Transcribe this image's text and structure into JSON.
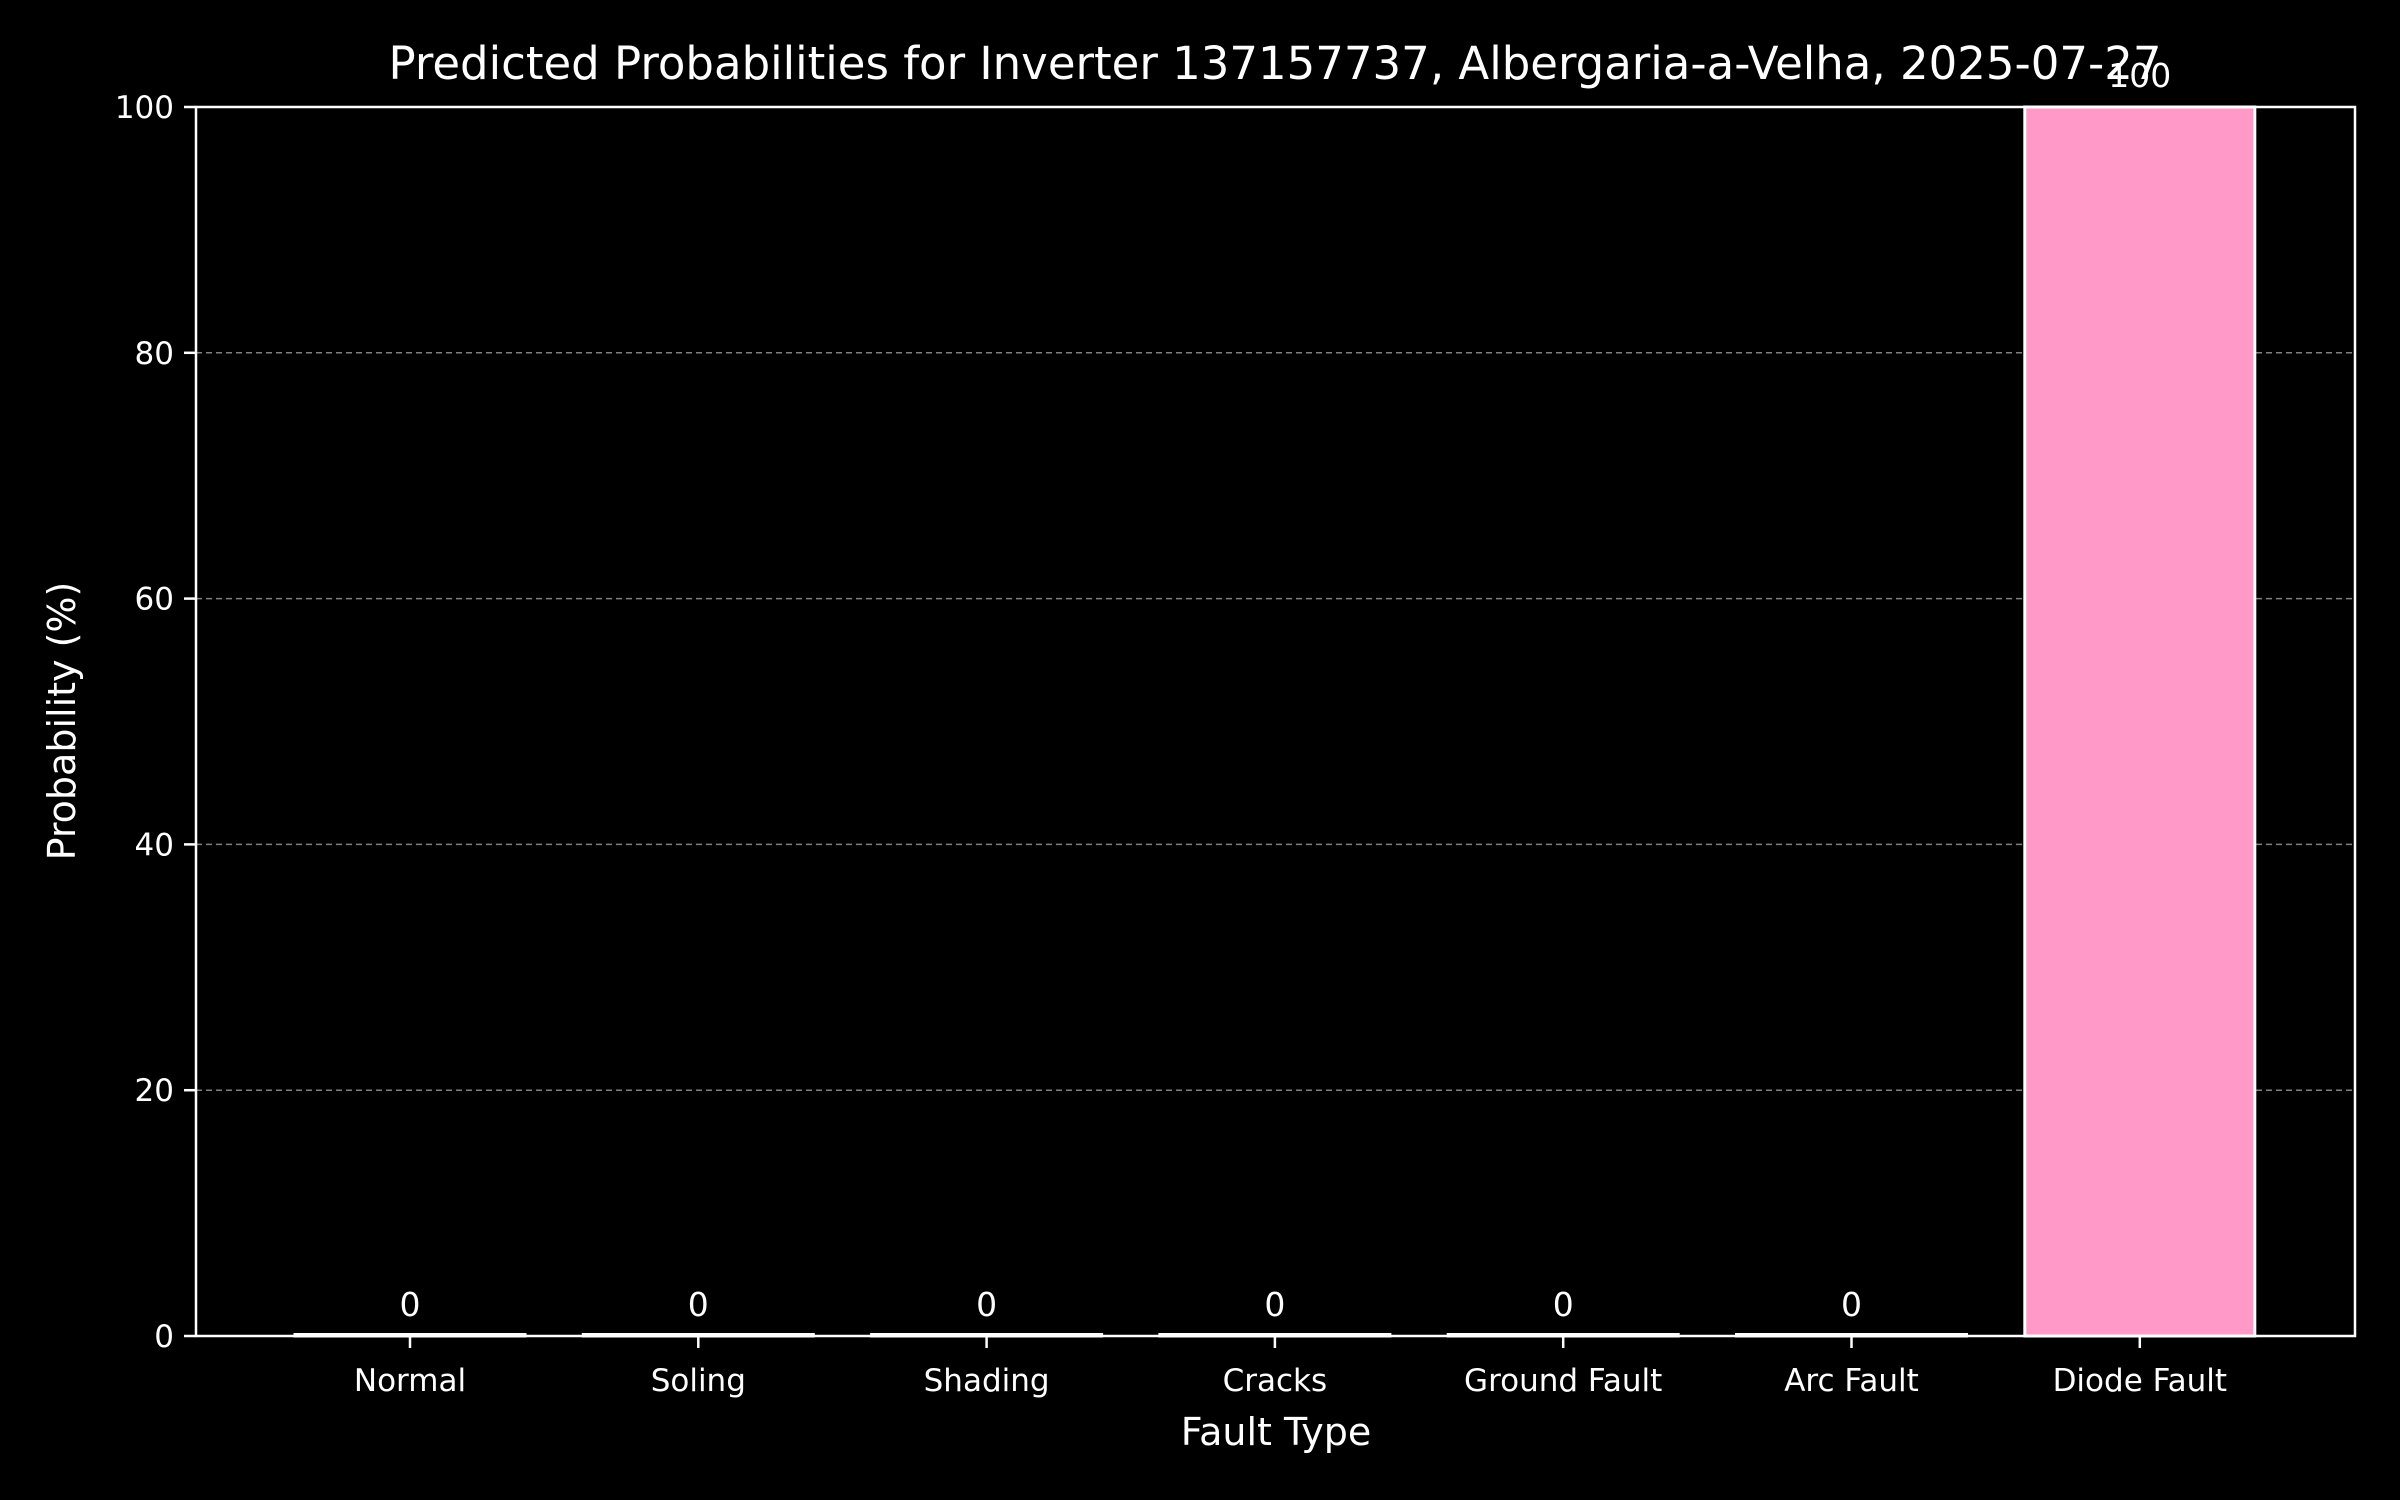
{
  "chart_data": {
    "type": "bar",
    "title": "Predicted Probabilities for Inverter 137157737, Albergaria-a-Velha, 2025-07-27",
    "xlabel": "Fault Type",
    "ylabel": "Probability (%)",
    "categories": [
      "Normal",
      "Soling",
      "Shading",
      "Cracks",
      "Ground Fault",
      "Arc Fault",
      "Diode Fault"
    ],
    "values": [
      0,
      0,
      0,
      0,
      0,
      0,
      100
    ],
    "data_labels": [
      "0",
      "0",
      "0",
      "0",
      "0",
      "0",
      "100"
    ],
    "ylim": [
      0,
      100
    ],
    "yticks": [
      0,
      20,
      40,
      60,
      80,
      100
    ],
    "grid": "horizontal dashed",
    "colors": {
      "background": "#000000",
      "axes": "#ffffff",
      "text": "#ffffff",
      "grid": "#808080",
      "bar_fill": "#ff99c8",
      "bar_edge": "#ffffff"
    }
  }
}
